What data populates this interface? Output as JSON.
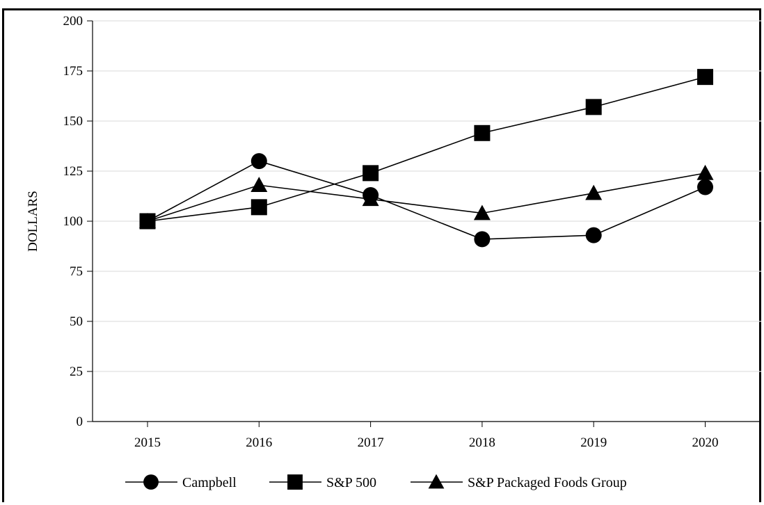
{
  "chart_data": {
    "type": "line",
    "title": "",
    "xlabel": "",
    "ylabel": "DOLLARS",
    "x": [
      "2015",
      "2016",
      "2017",
      "2018",
      "2019",
      "2020"
    ],
    "ylim": [
      0,
      200
    ],
    "yticks": [
      "0",
      "25",
      "50",
      "75",
      "100",
      "125",
      "150",
      "175",
      "200"
    ],
    "grid": true,
    "legend_position": "bottom",
    "series": [
      {
        "name": "Campbell",
        "marker": "circle",
        "color": "#000000",
        "values": [
          100,
          130,
          113,
          91,
          93,
          117
        ]
      },
      {
        "name": "S&P 500",
        "marker": "square",
        "color": "#000000",
        "values": [
          100,
          107,
          124,
          144,
          157,
          172
        ]
      },
      {
        "name": "S&P Packaged Foods Group",
        "marker": "triangle",
        "color": "#000000",
        "values": [
          100,
          118,
          111,
          104,
          114,
          124
        ]
      }
    ]
  }
}
